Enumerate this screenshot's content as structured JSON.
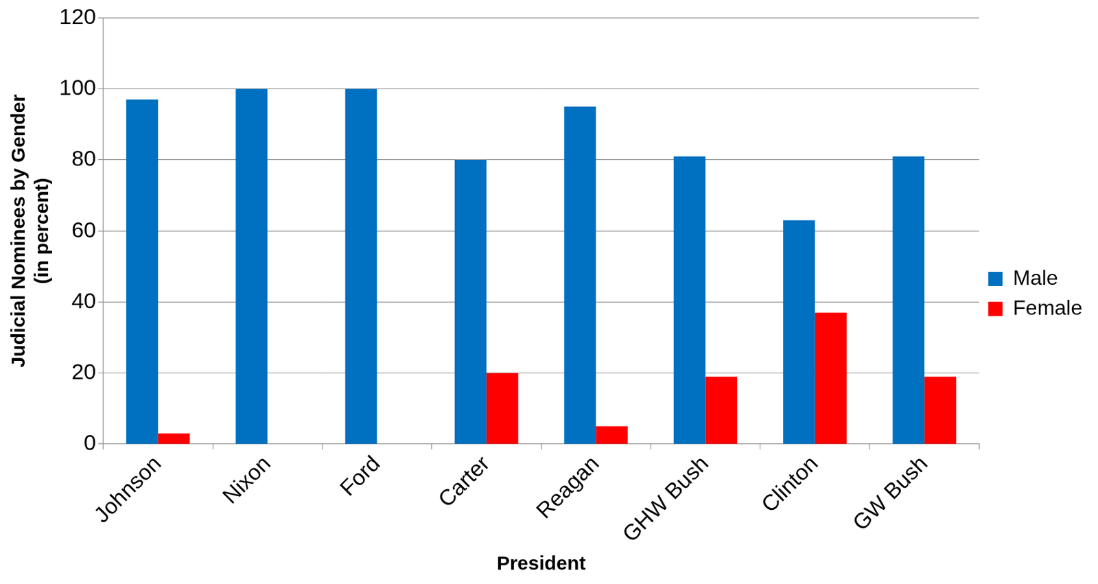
{
  "chart_data": {
    "type": "bar",
    "x_label": "President",
    "y_label": "Judicial Nominees by Gender (in percent)",
    "categories": [
      "Johnson",
      "Nixon",
      "Ford",
      "Carter",
      "Reagan",
      "GHW Bush",
      "Clinton",
      "GW Bush"
    ],
    "series": [
      {
        "name": "Male",
        "color": "#0070c0",
        "values": [
          97,
          100,
          100,
          80,
          95,
          81,
          63,
          81
        ]
      },
      {
        "name": "Female",
        "color": "#ff0000",
        "values": [
          3,
          0,
          0,
          20,
          5,
          19,
          37,
          19
        ]
      }
    ],
    "ylim": [
      0,
      120
    ],
    "yticks": [
      0,
      20,
      40,
      60,
      80,
      100,
      120
    ],
    "grid": true,
    "legend": "right"
  }
}
